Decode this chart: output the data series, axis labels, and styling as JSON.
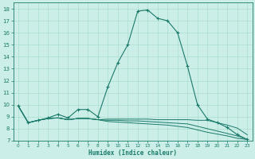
{
  "xlabel": "Humidex (Indice chaleur)",
  "x": [
    0,
    1,
    2,
    3,
    4,
    5,
    6,
    7,
    8,
    9,
    10,
    11,
    12,
    13,
    14,
    15,
    16,
    17,
    18,
    19,
    20,
    21,
    22,
    23
  ],
  "line1": [
    9.9,
    8.5,
    8.7,
    8.9,
    9.2,
    8.9,
    9.6,
    9.6,
    9.0,
    11.5,
    13.5,
    15.0,
    17.8,
    17.9,
    17.2,
    17.0,
    16.0,
    13.2,
    10.0,
    8.8,
    8.5,
    8.1,
    7.5,
    7.1
  ],
  "line2": [
    9.9,
    8.5,
    8.7,
    8.85,
    8.9,
    8.75,
    8.85,
    8.85,
    8.75,
    8.8,
    8.8,
    8.8,
    8.8,
    8.8,
    8.75,
    8.75,
    8.75,
    8.75,
    8.7,
    8.7,
    8.5,
    8.3,
    8.05,
    7.5
  ],
  "line3": [
    9.9,
    8.5,
    8.7,
    8.85,
    8.9,
    8.75,
    8.85,
    8.85,
    8.75,
    8.7,
    8.7,
    8.65,
    8.65,
    8.6,
    8.55,
    8.5,
    8.45,
    8.4,
    8.2,
    8.0,
    7.8,
    7.6,
    7.4,
    7.1
  ],
  "line4": [
    9.9,
    8.5,
    8.7,
    8.85,
    8.9,
    8.75,
    8.85,
    8.85,
    8.75,
    8.6,
    8.55,
    8.5,
    8.45,
    8.4,
    8.35,
    8.3,
    8.2,
    8.1,
    7.9,
    7.7,
    7.55,
    7.4,
    7.2,
    7.1
  ],
  "line_color": "#1a7a6a",
  "bg_color": "#cceee8",
  "grid_color": "#aaddcc",
  "ylim": [
    7,
    18.5
  ],
  "xlim": [
    -0.5,
    23.5
  ],
  "yticks": [
    7,
    8,
    9,
    10,
    11,
    12,
    13,
    14,
    15,
    16,
    17,
    18
  ],
  "xticks": [
    0,
    1,
    2,
    3,
    4,
    5,
    6,
    7,
    8,
    9,
    10,
    11,
    12,
    13,
    14,
    15,
    16,
    17,
    18,
    19,
    20,
    21,
    22,
    23
  ]
}
